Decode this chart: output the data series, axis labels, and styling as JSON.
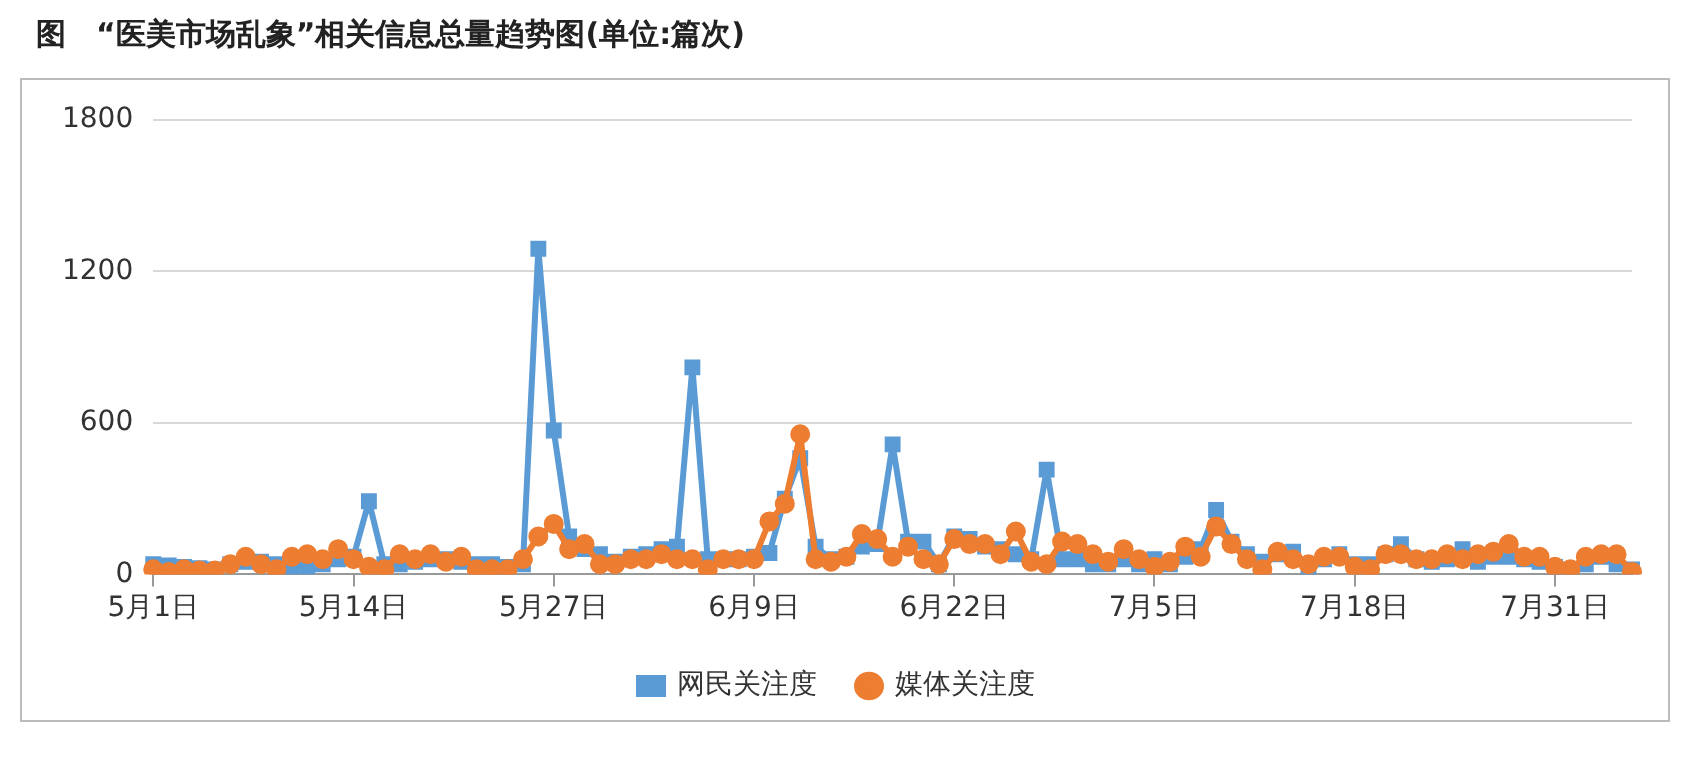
{
  "chart_data": {
    "type": "line",
    "title": "图　“医美市场乱象”相关信息总量趋势图(单位:篇次)",
    "categories": [
      "5月1日",
      null,
      null,
      null,
      null,
      null,
      null,
      null,
      null,
      null,
      null,
      null,
      null,
      "5月14日",
      null,
      null,
      null,
      null,
      null,
      null,
      null,
      null,
      null,
      null,
      null,
      null,
      "5月27日",
      null,
      null,
      null,
      null,
      null,
      null,
      null,
      null,
      null,
      null,
      null,
      null,
      "6月9日",
      null,
      null,
      null,
      null,
      null,
      null,
      null,
      null,
      null,
      null,
      null,
      null,
      "6月22日",
      null,
      null,
      null,
      null,
      null,
      null,
      null,
      null,
      null,
      null,
      null,
      null,
      "7月5日",
      null,
      null,
      null,
      null,
      null,
      null,
      null,
      null,
      null,
      null,
      null,
      null,
      "7月18日",
      null,
      null,
      null,
      null,
      null,
      null,
      null,
      null,
      null,
      null,
      null,
      null,
      "7月31日",
      null,
      null,
      null,
      null,
      null
    ],
    "series": [
      {
        "name": "网民关注度",
        "color": "#5b9bd5",
        "marker": "square",
        "values": [
          40,
          35,
          30,
          25,
          20,
          40,
          50,
          50,
          40,
          30,
          30,
          40,
          60,
          70,
          290,
          40,
          40,
          50,
          60,
          60,
          50,
          40,
          40,
          30,
          40,
          1290,
          570,
          150,
          100,
          80,
          50,
          70,
          80,
          100,
          110,
          820,
          60,
          60,
          60,
          70,
          85,
          300,
          460,
          110,
          60,
          70,
          110,
          120,
          515,
          130,
          130,
          40,
          150,
          140,
          110,
          100,
          80,
          60,
          415,
          60,
          60,
          40,
          40,
          60,
          40,
          60,
          40,
          70,
          100,
          255,
          130,
          80,
          50,
          80,
          90,
          30,
          60,
          80,
          40,
          40,
          80,
          120,
          60,
          50,
          60,
          100,
          50,
          70,
          70,
          60,
          50,
          30,
          20,
          40,
          70,
          40,
          20
        ]
      },
      {
        "name": "媒体关注度",
        "color": "#ed7d31",
        "marker": "circle",
        "values": [
          20,
          10,
          20,
          15,
          15,
          40,
          70,
          40,
          20,
          70,
          80,
          60,
          100,
          60,
          30,
          20,
          80,
          60,
          80,
          50,
          70,
          20,
          20,
          20,
          60,
          150,
          200,
          100,
          120,
          40,
          40,
          60,
          60,
          80,
          60,
          60,
          20,
          60,
          60,
          60,
          210,
          280,
          555,
          60,
          50,
          70,
          160,
          140,
          70,
          110,
          60,
          40,
          140,
          120,
          120,
          80,
          170,
          50,
          40,
          130,
          120,
          80,
          50,
          100,
          60,
          30,
          50,
          110,
          70,
          190,
          120,
          60,
          20,
          90,
          60,
          40,
          70,
          70,
          30,
          20,
          80,
          80,
          60,
          60,
          80,
          60,
          80,
          90,
          120,
          70,
          70,
          30,
          20,
          70,
          80,
          80,
          10
        ]
      }
    ],
    "ylim": [
      0,
      1800
    ],
    "yticks": [
      0,
      600,
      1200,
      1800
    ],
    "grid": "y",
    "legend": "bottom",
    "line_style": "solid"
  }
}
